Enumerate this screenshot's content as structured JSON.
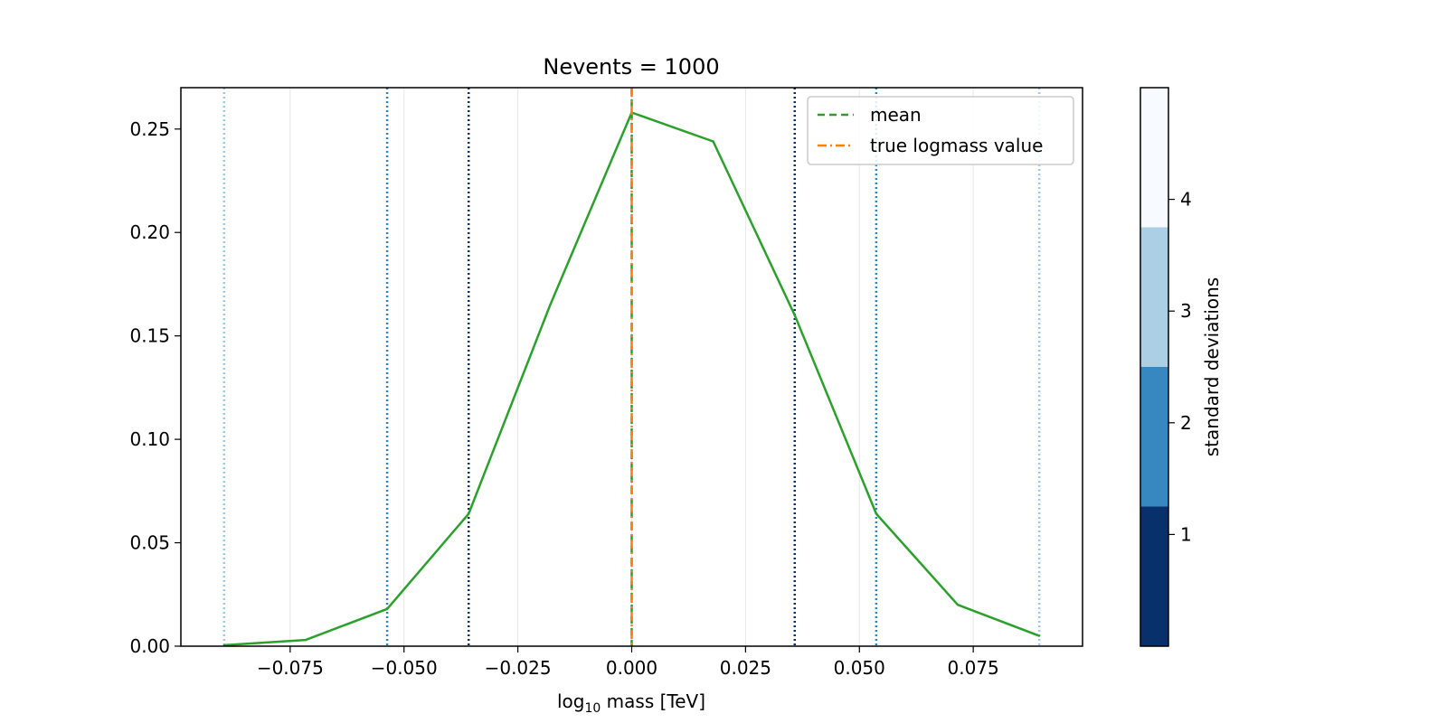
{
  "chart_data": {
    "type": "line",
    "title": "Nevents = 1000",
    "xlabel_main": "log",
    "xlabel_sub": "10",
    "xlabel_rest": " mass [TeV]",
    "xlim": [
      -0.099,
      0.099
    ],
    "ylim": [
      0,
      0.27
    ],
    "xticks": [
      -0.075,
      -0.05,
      -0.025,
      0.0,
      0.025,
      0.05,
      0.075
    ],
    "xtick_labels": [
      "−0.075",
      "−0.050",
      "−0.025",
      "0.000",
      "0.025",
      "0.050",
      "0.075"
    ],
    "yticks": [
      0,
      0.05,
      0.1,
      0.15,
      0.2,
      0.25
    ],
    "ytick_labels": [
      "0.00",
      "0.05",
      "0.10",
      "0.15",
      "0.20",
      "0.25"
    ],
    "series": [
      {
        "name": "",
        "color": "#2ca02c",
        "style": "solid",
        "x": [
          -0.0895,
          -0.0716,
          -0.0537,
          -0.0358,
          -0.0179,
          0.0,
          0.0179,
          0.0358,
          0.0537,
          0.0716,
          0.0895
        ],
        "y": [
          0.0005,
          0.003,
          0.018,
          0.064,
          0.165,
          0.258,
          0.244,
          0.16,
          0.064,
          0.02,
          0.005
        ]
      }
    ],
    "vertical_lines": [
      {
        "name": "mean",
        "x": 0.0,
        "color": "#2ca02c",
        "style": "dashed"
      },
      {
        "name": "true logmass value",
        "x": 0.0,
        "color": "#ff7f0e",
        "style": "dashdot"
      }
    ],
    "sigma_lines": [
      {
        "x": -0.0358,
        "sigma": 1,
        "color": "#08306b"
      },
      {
        "x": 0.0358,
        "sigma": 1,
        "color": "#08306b"
      },
      {
        "x": -0.0537,
        "sigma": 2,
        "color": "#3182bd"
      },
      {
        "x": 0.0537,
        "sigma": 2,
        "color": "#3182bd"
      },
      {
        "x": -0.0895,
        "sigma": 3,
        "color": "#9ecae1"
      },
      {
        "x": 0.0895,
        "sigma": 4,
        "color": "#9ecae1"
      }
    ],
    "grid_x": true,
    "legend": {
      "placement": "top-right",
      "entries": [
        {
          "label": "mean",
          "color": "#2ca02c",
          "style": "dashed"
        },
        {
          "label": "true logmass value",
          "color": "#ff7f0e",
          "style": "dashdot"
        }
      ]
    },
    "colorbar": {
      "label": "standard deviations",
      "range": [
        0,
        5
      ],
      "ticks": [
        1,
        2,
        3,
        4
      ],
      "tick_labels": [
        "1",
        "2",
        "3",
        "4"
      ],
      "bands": [
        {
          "from": 0,
          "to": 1.25,
          "color": "#08306b"
        },
        {
          "from": 1.25,
          "to": 2.5,
          "color": "#3787c0"
        },
        {
          "from": 2.5,
          "to": 3.75,
          "color": "#abcfe5"
        },
        {
          "from": 3.75,
          "to": 5,
          "color": "#f7fbff"
        }
      ]
    }
  }
}
